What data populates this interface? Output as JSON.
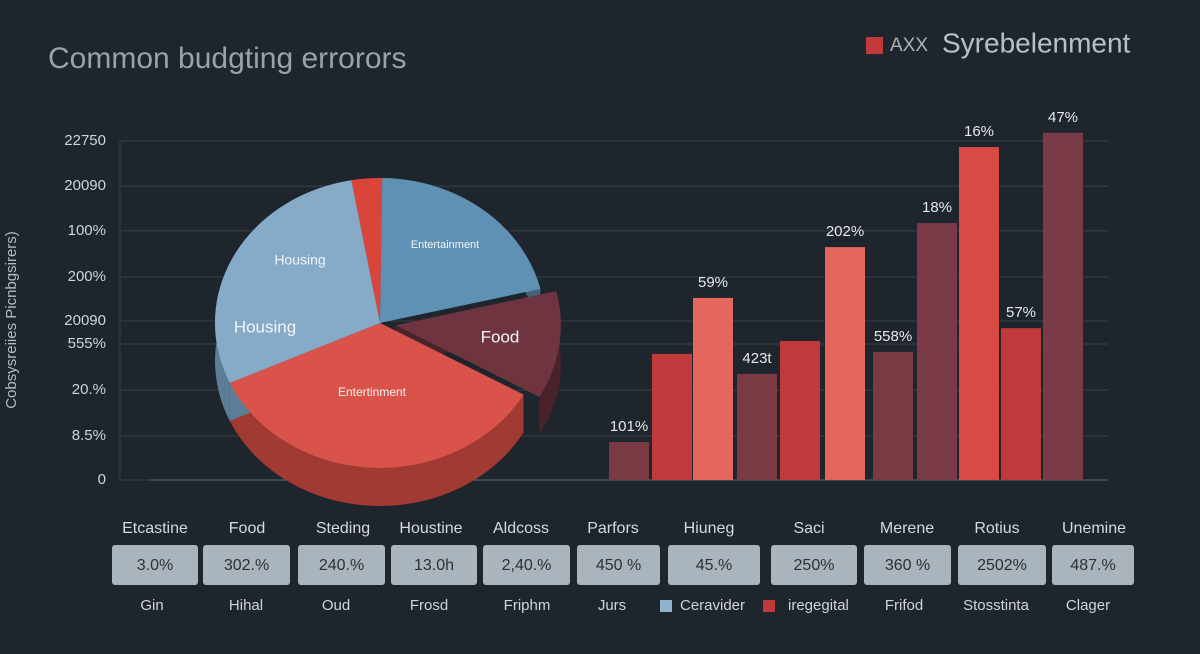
{
  "title": "Common budgting errorors",
  "legend": {
    "color": "#c0393b",
    "label": "AXX",
    "title": "Syrebelenment"
  },
  "chart_data": [
    {
      "type": "pie",
      "categories": [
        null,
        "Entertainment",
        "Food",
        "Entertinment",
        "Housing"
      ],
      "values": [
        3,
        21,
        12,
        35,
        29
      ],
      "colors": [
        "#d9443b",
        "#5f91b5",
        "#6e3540",
        "#d9534a",
        "#85abc8"
      ],
      "side_colors": [
        "#9c2f2a",
        "#41657f",
        "#4a222a",
        "#a13a33",
        "#5d7d96"
      ],
      "annotations": [
        "Housing"
      ]
    },
    {
      "type": "bar",
      "y_label": "Cobsysreiies Picnbgsirers)",
      "values": [
        11.2,
        37.2,
        53.7,
        31.3,
        41,
        68.7,
        37.8,
        75.8,
        98.2,
        44.8,
        102.4
      ],
      "colors": [
        "#7a3a44",
        "#c0393b",
        "#e4665d",
        "#7a3a44",
        "#c0393b",
        "#e4665d",
        "#7a3a44",
        "#7a3a48",
        "#d94a45",
        "#c0393b",
        "#7a3a48"
      ],
      "annotations": [
        "101%",
        null,
        "59%",
        "423t",
        null,
        "202%",
        "558%",
        "18%",
        "16%",
        "57%",
        "47%"
      ],
      "ylim": [
        0,
        105
      ],
      "yticks": [
        0,
        {
          "value": 13,
          "label": "8.5%"
        },
        {
          "value": 26.5,
          "label": "20.%"
        },
        {
          "value": 40.1,
          "label": "555%"
        },
        {
          "value": 46.9,
          "label": "20090"
        },
        {
          "value": 59.9,
          "label": "200%"
        },
        {
          "value": 73.5,
          "label": "100%"
        },
        {
          "value": 86.7,
          "label": "20090"
        },
        {
          "value": 100,
          "label": "22750"
        }
      ],
      "grid": true
    }
  ],
  "table": {
    "header": [
      "Etcastine",
      "Food",
      "Steding",
      "Houstine",
      "Aldcoss",
      "Parfors",
      "Hiuneg",
      "Saci",
      "Merene",
      "Rotius",
      "Unemine"
    ],
    "values": [
      "3.0%",
      "302.%",
      "240.%",
      "13.0h",
      "2,40.%",
      "450 %",
      "45.%",
      "250%",
      "360 %",
      "2502%",
      "487.%"
    ],
    "footer": [
      "Gin",
      "Hihal",
      "Oud",
      "Frosd",
      "Friphm",
      "Jurs",
      "Frifod",
      "Stosstinta",
      "Clager"
    ],
    "legend": [
      {
        "name": "Ceravider",
        "color": "#8fb3cc"
      },
      {
        "name": "iregegital",
        "color": "#c0393b"
      }
    ]
  }
}
